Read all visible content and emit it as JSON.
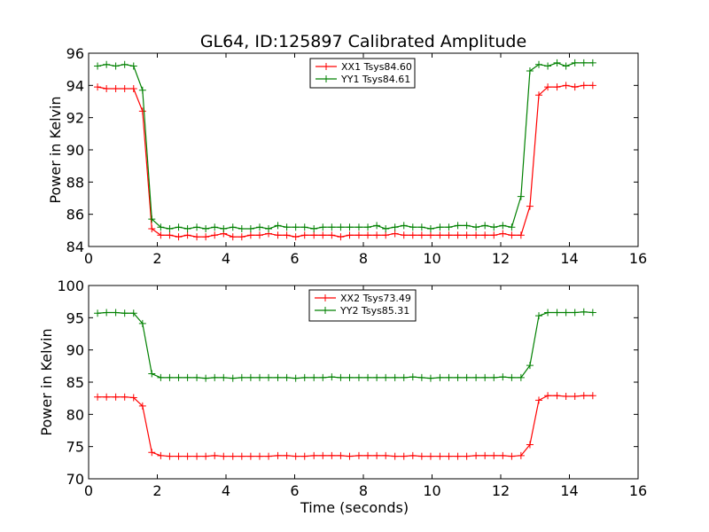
{
  "figure": {
    "title": "GL64, ID:125897 Calibrated Amplitude",
    "colors": {
      "series_red": "#ff0000",
      "series_green": "#008000",
      "axes": "#000000",
      "background": "#ffffff"
    }
  },
  "chart_data": [
    {
      "type": "line",
      "title": "GL64, ID:125897 Calibrated Amplitude",
      "xlabel": "",
      "ylabel": "Power in Kelvin",
      "xlim": [
        0,
        16
      ],
      "ylim": [
        84,
        96
      ],
      "xticks": [
        "0",
        "2",
        "4",
        "6",
        "8",
        "10",
        "12",
        "14",
        "16"
      ],
      "yticks": [
        "84",
        "86",
        "88",
        "90",
        "92",
        "94",
        "96"
      ],
      "xtick_values": [
        0,
        2,
        4,
        6,
        8,
        10,
        12,
        14,
        16
      ],
      "ytick_values": [
        84,
        86,
        88,
        90,
        92,
        94,
        96
      ],
      "grid": false,
      "legend": "top-center",
      "marker": "plus",
      "x": [
        0.26,
        0.52,
        0.79,
        1.05,
        1.31,
        1.57,
        1.84,
        2.1,
        2.36,
        2.62,
        2.88,
        3.15,
        3.41,
        3.67,
        3.93,
        4.2,
        4.46,
        4.72,
        4.98,
        5.24,
        5.51,
        5.77,
        6.03,
        6.29,
        6.56,
        6.82,
        7.08,
        7.34,
        7.6,
        7.87,
        8.13,
        8.39,
        8.65,
        8.92,
        9.18,
        9.44,
        9.7,
        9.96,
        10.23,
        10.49,
        10.75,
        11.01,
        11.28,
        11.54,
        11.8,
        12.06,
        12.32,
        12.59,
        12.85,
        13.11,
        13.37,
        13.64,
        13.9,
        14.16,
        14.42,
        14.68
      ],
      "series": [
        {
          "name": "XX1 Tsys84.60",
          "color": "#ff0000",
          "values": [
            93.9,
            93.8,
            93.8,
            93.8,
            93.8,
            92.4,
            85.1,
            84.7,
            84.7,
            84.6,
            84.7,
            84.6,
            84.6,
            84.7,
            84.8,
            84.6,
            84.6,
            84.7,
            84.7,
            84.8,
            84.7,
            84.7,
            84.6,
            84.7,
            84.7,
            84.7,
            84.7,
            84.6,
            84.7,
            84.7,
            84.7,
            84.7,
            84.7,
            84.8,
            84.7,
            84.7,
            84.7,
            84.7,
            84.7,
            84.7,
            84.7,
            84.7,
            84.7,
            84.7,
            84.7,
            84.8,
            84.7,
            84.7,
            86.5,
            93.4,
            93.9,
            93.9,
            94.0,
            93.9,
            94.0,
            94.0
          ]
        },
        {
          "name": "YY1 Tsys84.61",
          "color": "#008000",
          "values": [
            95.2,
            95.3,
            95.2,
            95.3,
            95.2,
            93.7,
            85.7,
            85.2,
            85.1,
            85.2,
            85.1,
            85.2,
            85.1,
            85.2,
            85.1,
            85.2,
            85.1,
            85.1,
            85.2,
            85.1,
            85.3,
            85.2,
            85.2,
            85.2,
            85.1,
            85.2,
            85.2,
            85.2,
            85.2,
            85.2,
            85.2,
            85.3,
            85.1,
            85.2,
            85.3,
            85.2,
            85.2,
            85.1,
            85.2,
            85.2,
            85.3,
            85.3,
            85.2,
            85.3,
            85.2,
            85.3,
            85.2,
            87.1,
            94.9,
            95.3,
            95.2,
            95.4,
            95.2,
            95.4,
            95.4,
            95.4
          ]
        }
      ]
    },
    {
      "type": "line",
      "title": "",
      "xlabel": "Time (seconds)",
      "ylabel": "Power in Kelvin",
      "xlim": [
        0,
        16
      ],
      "ylim": [
        70,
        100
      ],
      "xticks": [
        "0",
        "2",
        "4",
        "6",
        "8",
        "10",
        "12",
        "14",
        "16"
      ],
      "yticks": [
        "70",
        "75",
        "80",
        "85",
        "90",
        "95",
        "100"
      ],
      "xtick_values": [
        0,
        2,
        4,
        6,
        8,
        10,
        12,
        14,
        16
      ],
      "ytick_values": [
        70,
        75,
        80,
        85,
        90,
        95,
        100
      ],
      "grid": false,
      "legend": "top-center",
      "marker": "plus",
      "x": [
        0.26,
        0.52,
        0.79,
        1.05,
        1.31,
        1.57,
        1.84,
        2.1,
        2.36,
        2.62,
        2.88,
        3.15,
        3.41,
        3.67,
        3.93,
        4.2,
        4.46,
        4.72,
        4.98,
        5.24,
        5.51,
        5.77,
        6.03,
        6.29,
        6.56,
        6.82,
        7.08,
        7.34,
        7.6,
        7.87,
        8.13,
        8.39,
        8.65,
        8.92,
        9.18,
        9.44,
        9.7,
        9.96,
        10.23,
        10.49,
        10.75,
        11.01,
        11.28,
        11.54,
        11.8,
        12.06,
        12.32,
        12.59,
        12.85,
        13.11,
        13.37,
        13.64,
        13.9,
        14.16,
        14.42,
        14.68
      ],
      "series": [
        {
          "name": "XX2 Tsys73.49",
          "color": "#ff0000",
          "values": [
            82.7,
            82.7,
            82.7,
            82.7,
            82.6,
            81.3,
            74.1,
            73.6,
            73.5,
            73.5,
            73.5,
            73.5,
            73.5,
            73.6,
            73.5,
            73.5,
            73.5,
            73.5,
            73.5,
            73.5,
            73.6,
            73.6,
            73.5,
            73.5,
            73.6,
            73.6,
            73.6,
            73.6,
            73.5,
            73.6,
            73.6,
            73.6,
            73.6,
            73.5,
            73.5,
            73.6,
            73.5,
            73.5,
            73.5,
            73.5,
            73.5,
            73.5,
            73.6,
            73.6,
            73.6,
            73.6,
            73.5,
            73.6,
            75.3,
            82.2,
            82.9,
            82.9,
            82.8,
            82.8,
            82.9,
            82.9
          ]
        },
        {
          "name": "YY2 Tsys85.31",
          "color": "#008000",
          "values": [
            95.7,
            95.8,
            95.8,
            95.7,
            95.7,
            94.1,
            86.3,
            85.7,
            85.7,
            85.7,
            85.7,
            85.7,
            85.6,
            85.7,
            85.7,
            85.6,
            85.7,
            85.7,
            85.7,
            85.7,
            85.7,
            85.7,
            85.6,
            85.7,
            85.7,
            85.7,
            85.8,
            85.7,
            85.7,
            85.7,
            85.7,
            85.7,
            85.7,
            85.7,
            85.7,
            85.8,
            85.7,
            85.6,
            85.7,
            85.7,
            85.7,
            85.7,
            85.7,
            85.7,
            85.7,
            85.8,
            85.7,
            85.7,
            87.6,
            95.3,
            95.8,
            95.8,
            95.8,
            95.8,
            95.9,
            95.8
          ]
        }
      ]
    }
  ]
}
